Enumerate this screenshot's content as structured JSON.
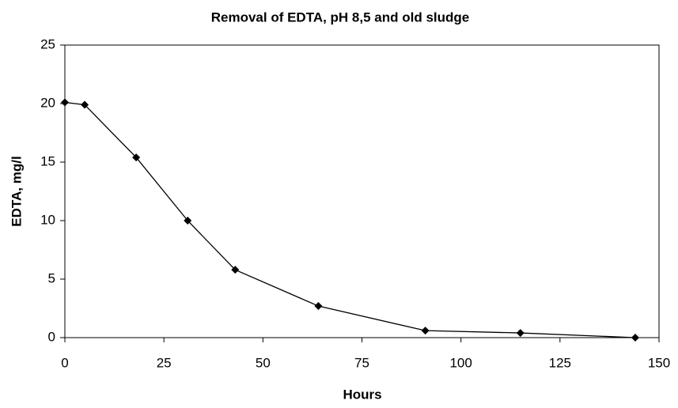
{
  "chart_data": {
    "type": "line",
    "title": "Removal of EDTA, pH 8,5 and old sludge",
    "x_label": "Hours",
    "y_label": "EDTA, mg/l",
    "x": [
      0,
      5,
      18,
      31,
      43,
      64,
      91,
      115,
      144
    ],
    "series": [
      {
        "name": "EDTA",
        "color": "#000000",
        "values": [
          20.1,
          19.9,
          15.4,
          10.0,
          5.8,
          2.7,
          0.6,
          0.4,
          0.0
        ]
      }
    ],
    "xlim": [
      0,
      150
    ],
    "xticks": [
      0,
      25,
      50,
      75,
      100,
      125,
      150
    ],
    "ylim": [
      0,
      25
    ],
    "yticks": [
      0,
      5,
      10,
      15,
      20,
      25
    ],
    "grid": false,
    "marker": "diamond"
  }
}
